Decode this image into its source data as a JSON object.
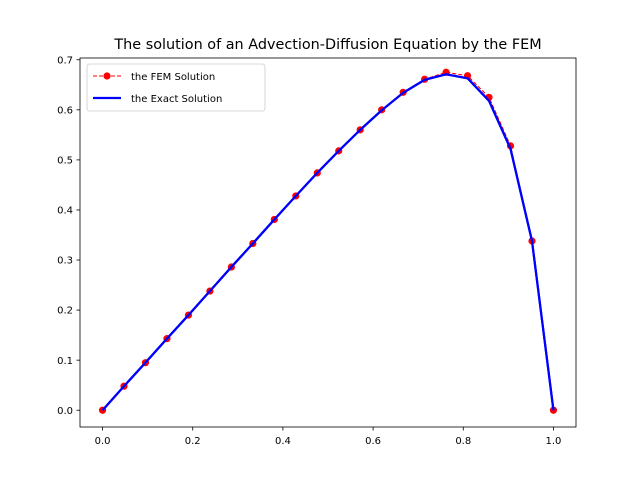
{
  "chart_data": {
    "type": "line",
    "title": "The solution of an Advection-Diffusion Equation by the FEM",
    "xlabel": "",
    "ylabel": "",
    "xlim": [
      -0.05,
      1.05
    ],
    "ylim": [
      -0.0335,
      0.7035
    ],
    "xticks": [
      0.0,
      0.2,
      0.4,
      0.6,
      0.8,
      1.0
    ],
    "xtick_labels": [
      "0.0",
      "0.2",
      "0.4",
      "0.6",
      "0.8",
      "1.0"
    ],
    "yticks": [
      0.0,
      0.1,
      0.2,
      0.3,
      0.4,
      0.5,
      0.6,
      0.7
    ],
    "ytick_labels": [
      "0.0",
      "0.1",
      "0.2",
      "0.3",
      "0.4",
      "0.5",
      "0.6",
      "0.7"
    ],
    "grid": false,
    "legend_position": "top-left",
    "series": [
      {
        "name": "the FEM Solution",
        "color": "#ff0000",
        "style": "dashed-with-circle-markers",
        "x": [
          0.0,
          0.0476,
          0.0952,
          0.1429,
          0.1905,
          0.2381,
          0.2857,
          0.3333,
          0.381,
          0.4286,
          0.4762,
          0.5238,
          0.5714,
          0.619,
          0.6667,
          0.7143,
          0.7619,
          0.8095,
          0.8571,
          0.9048,
          0.9524,
          1.0
        ],
        "y": [
          0.0,
          0.048,
          0.095,
          0.143,
          0.19,
          0.238,
          0.286,
          0.333,
          0.381,
          0.428,
          0.474,
          0.518,
          0.56,
          0.6,
          0.635,
          0.661,
          0.675,
          0.668,
          0.625,
          0.528,
          0.338,
          0.0
        ]
      },
      {
        "name": "the Exact Solution",
        "color": "#0000ff",
        "style": "solid",
        "x": [
          0.0,
          0.0476,
          0.0952,
          0.1429,
          0.1905,
          0.2381,
          0.2857,
          0.3333,
          0.381,
          0.4286,
          0.4762,
          0.5238,
          0.5714,
          0.619,
          0.6667,
          0.7143,
          0.7619,
          0.8095,
          0.8571,
          0.9048,
          0.9524,
          1.0
        ],
        "y": [
          0.0,
          0.048,
          0.095,
          0.143,
          0.19,
          0.238,
          0.286,
          0.333,
          0.381,
          0.428,
          0.474,
          0.518,
          0.56,
          0.599,
          0.634,
          0.66,
          0.671,
          0.663,
          0.618,
          0.522,
          0.338,
          0.0
        ]
      }
    ]
  }
}
